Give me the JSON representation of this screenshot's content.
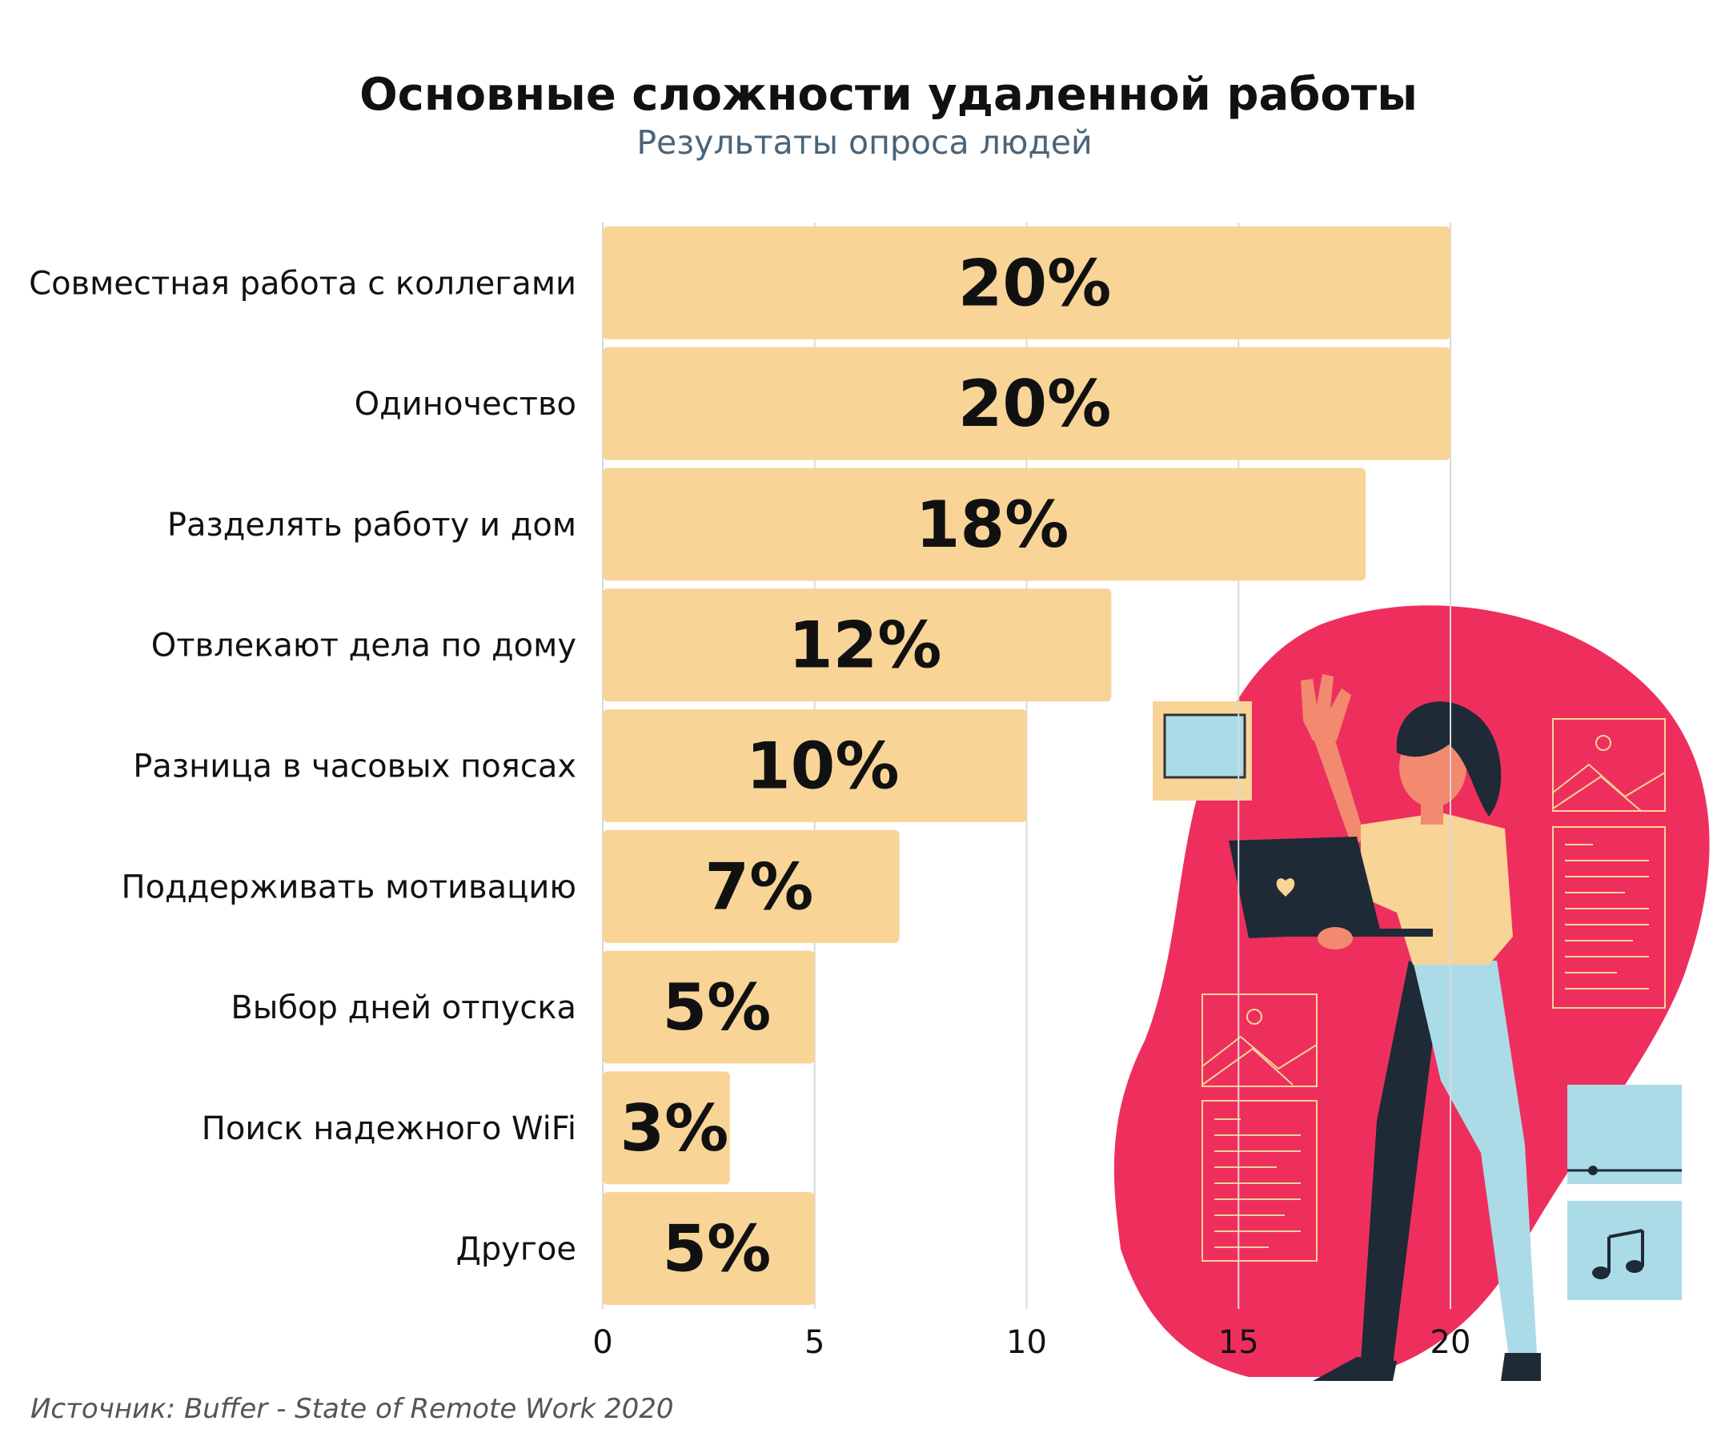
{
  "chart_data": {
    "type": "bar",
    "orientation": "horizontal",
    "title": "Основные сложности удаленной работы",
    "subtitle": "Результаты опроса людей",
    "categories": [
      "Совместная работа с коллегами",
      "Одиночество",
      "Разделять работу и дом",
      "Отвлекают дела по дому",
      "Разница в часовых поясах",
      "Поддерживать мотивацию",
      "Выбор дней отпуска",
      "Поиск надежного WiFi",
      "Другое"
    ],
    "values": [
      20,
      20,
      18,
      12,
      10,
      7,
      5,
      3,
      5
    ],
    "value_labels": [
      "20%",
      "20%",
      "18%",
      "12%",
      "10%",
      "7%",
      "5%",
      "3%",
      "5%"
    ],
    "xlim": [
      0,
      20
    ],
    "xticks": [
      "0",
      "5",
      "10",
      "15",
      "20"
    ],
    "grid": "vertical",
    "bar_color": "#f8d497",
    "illustration_blob_color": "#ee2f5e"
  },
  "source": "Источник: Buffer - State of Remote Work 2020"
}
